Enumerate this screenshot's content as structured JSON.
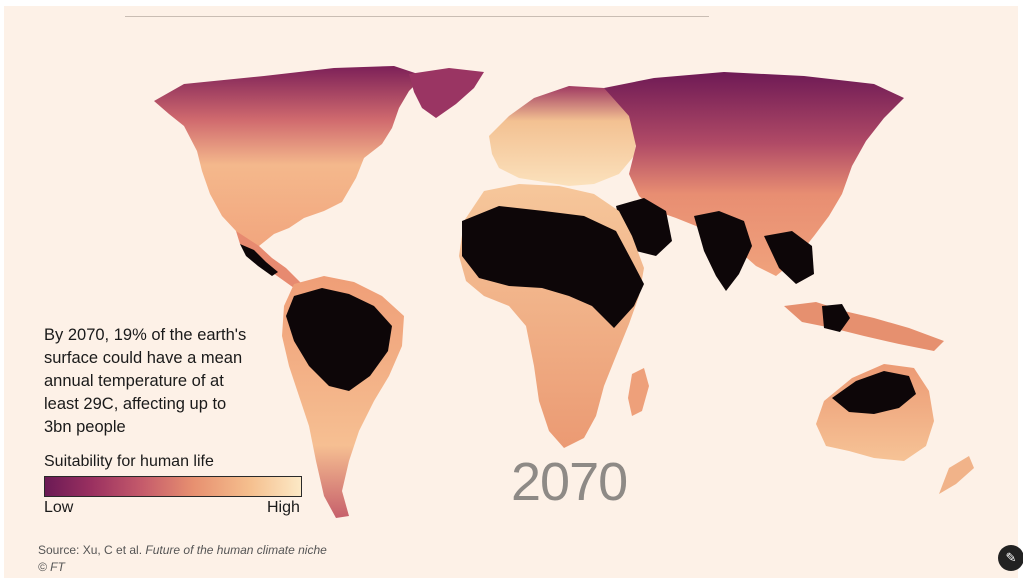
{
  "caption": "By 2070, 19% of the earth's\nsurface could have a mean\nannual temperature of at\nleast 29C, affecting up to\n3bn people",
  "legend": {
    "title": "Suitability for human life",
    "low_label": "Low",
    "high_label": "High",
    "colors": [
      "#6b1a55",
      "#c55b6b",
      "#f5bf8e",
      "#fce9c6"
    ],
    "extreme_color": "#0d0608"
  },
  "year_label": "2070",
  "source": {
    "prefix": "Source: Xu, C et al. ",
    "title": "Future of the human climate niche",
    "copyright": "© FT"
  },
  "background_color": "#fdf1e7",
  "corner_icon": "chat-icon"
}
